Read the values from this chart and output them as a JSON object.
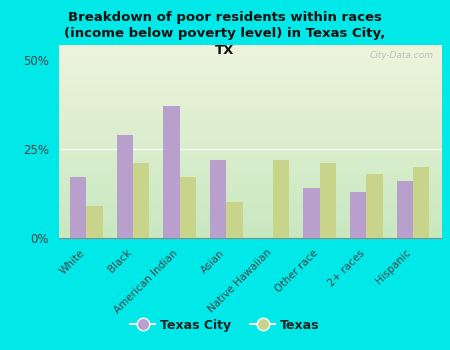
{
  "title": "Breakdown of poor residents within races\n(income below poverty level) in Texas City,\nTX",
  "categories": [
    "White",
    "Black",
    "American Indian",
    "Asian",
    "Native Hawaiian",
    "Other race",
    "2+ races",
    "Hispanic"
  ],
  "texas_city": [
    17,
    29,
    37,
    22,
    0,
    14,
    13,
    16
  ],
  "texas": [
    9,
    21,
    17,
    10,
    22,
    21,
    18,
    20
  ],
  "texas_city_color": "#b89fcc",
  "texas_color": "#c8d48a",
  "bg_color": "#00e8e8",
  "plot_bg_top": "#eef4dc",
  "plot_bg_bottom": "#c8e8c0",
  "ylabel_ticks": [
    0,
    25,
    50
  ],
  "ylabel_labels": [
    "0%",
    "25%",
    "50%"
  ],
  "bar_width": 0.35,
  "legend_labels": [
    "Texas City",
    "Texas"
  ],
  "watermark": "City-Data.com",
  "ylim": [
    0,
    54
  ]
}
